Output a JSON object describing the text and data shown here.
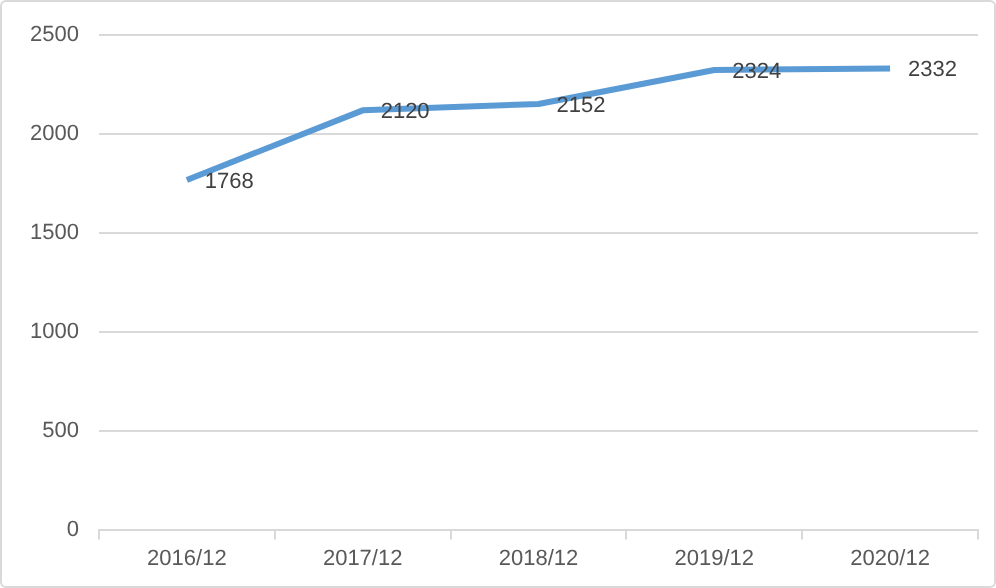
{
  "chart_data": {
    "type": "line",
    "categories": [
      "2016/12",
      "2017/12",
      "2018/12",
      "2019/12",
      "2020/12"
    ],
    "series": [
      {
        "color": "#5b9bd5",
        "values": [
          1768,
          2120,
          2152,
          2324,
          2332
        ]
      }
    ],
    "ylim": [
      0,
      2500
    ],
    "yticks": [
      0,
      500,
      1000,
      1500,
      2000,
      2500
    ],
    "grid": "y",
    "legend": false,
    "marker": "none",
    "line_style": "solid",
    "data_labels": true
  }
}
